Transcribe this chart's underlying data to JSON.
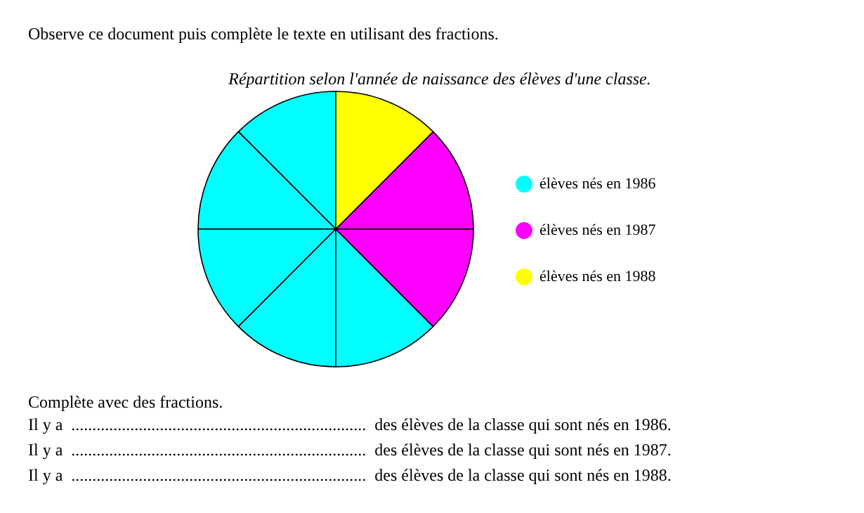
{
  "chart_data": {
    "type": "pie",
    "title": "Répartition selon l'année de naissance des élèves d'une classe.",
    "categories": [
      "élèves nés en 1986",
      null,
      null,
      null,
      null,
      "élèves nés en 1987",
      null,
      "élèves nés en 1988"
    ],
    "values": [
      12.5,
      12.5,
      12.5,
      12.5,
      12.5,
      12.5,
      12.5,
      12.5
    ],
    "colors": [
      "#00ffff",
      "#00ffff",
      "#00ffff",
      "#00ffff",
      "#00ffff",
      "#ff00ff",
      "#ff00ff",
      "#ffff00"
    ],
    "legend": "right",
    "annotations": [
      "Observe ce document puis complète le texte en utilisant des fractions.",
      "Complète avec des fractions.",
      "Il y a  ......................................................................  des élèves de la classe qui sont nés en 1986.",
      "Il y a  ......................................................................  des élèves de la classe qui sont nés en 1987.",
      "Il y a  ......................................................................  des élèves de la classe qui sont nés en 1988."
    ]
  }
}
